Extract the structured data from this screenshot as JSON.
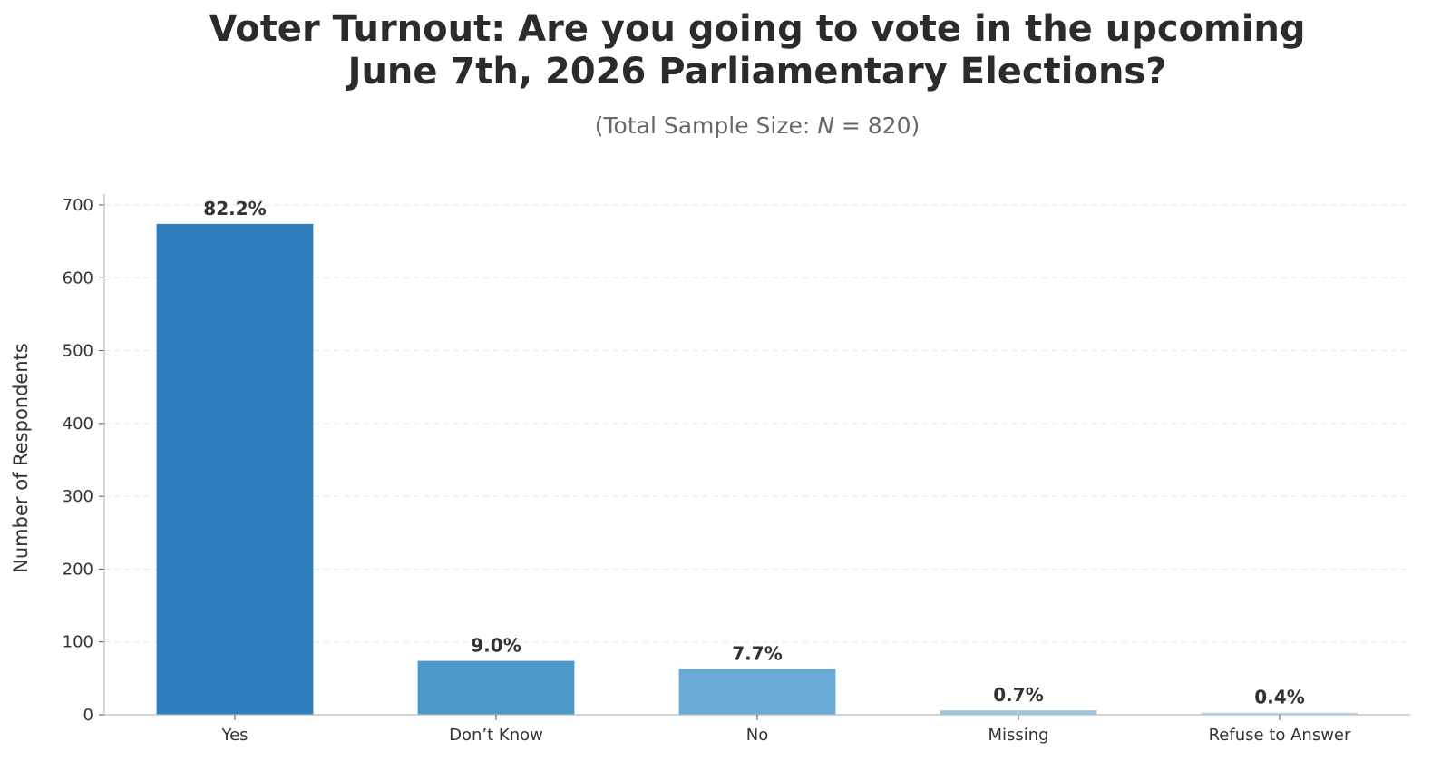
{
  "chart_data": {
    "type": "bar",
    "title_lines": [
      "Voter Turnout: Are you going to vote in the upcoming",
      "June 7th, 2026 Parliamentary Elections?"
    ],
    "subtitle": {
      "prefix": "(Total Sample Size: ",
      "n_symbol": "N",
      "equals": " = ",
      "n_value": "820",
      "suffix": ")"
    },
    "xlabel": "",
    "ylabel": "Number of Respondents",
    "categories": [
      "Yes",
      "Don’t Know",
      "No",
      "Missing",
      "Refuse to Answer"
    ],
    "values": [
      674,
      74,
      63,
      6,
      3
    ],
    "percent_labels": [
      "82.2%",
      "9.0%",
      "7.7%",
      "0.7%",
      "0.4%"
    ],
    "colors": [
      "#2e7ebc",
      "#4b98ca",
      "#69abd6",
      "#9ac6e2",
      "#bcd7ea"
    ],
    "ylim": [
      0,
      710
    ],
    "yticks": [
      0,
      100,
      200,
      300,
      400,
      500,
      600,
      700
    ],
    "grid": true,
    "legend": "none"
  }
}
